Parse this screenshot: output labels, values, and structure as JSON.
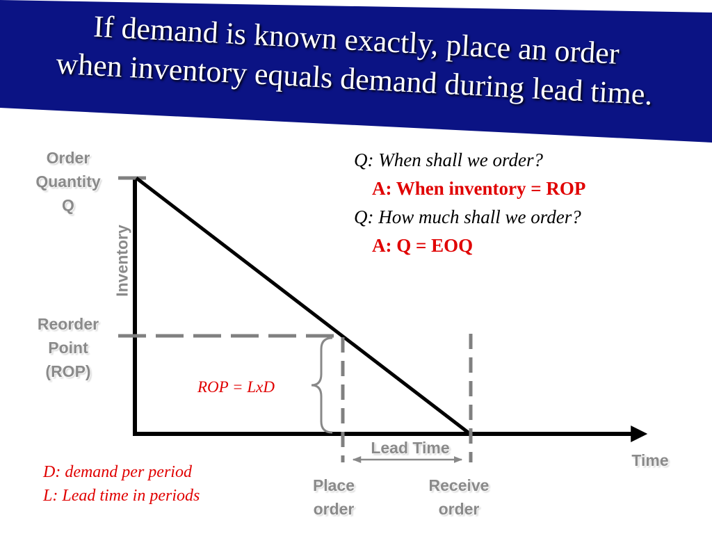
{
  "slide": {
    "title_line1": "If demand is known exactly, place an order",
    "title_line2": "when inventory equals demand during lead time."
  },
  "diagram": {
    "ylabel": "Inventory",
    "xlabel": "Time",
    "order_quantity": [
      "Order",
      "Quantity",
      "Q"
    ],
    "reorder_point": [
      "Reorder",
      "Point",
      "(ROP)"
    ],
    "lead_time": "Lead Time",
    "place_order": [
      "Place",
      "order"
    ],
    "receive_order": [
      "Receive",
      "order"
    ],
    "formula": "ROP = LxD"
  },
  "qa": [
    {
      "q": "Q: When shall we order?",
      "a": "A: When inventory = ROP"
    },
    {
      "q": "Q: How much shall we order?",
      "a": "A: Q = EOQ"
    }
  ],
  "legend": [
    "D: demand per period",
    "L: Lead time in periods"
  ],
  "colors": {
    "banner": "#0b1384",
    "answer": "#e00000",
    "label": "#8a8a8a",
    "dashes": "#808080"
  }
}
